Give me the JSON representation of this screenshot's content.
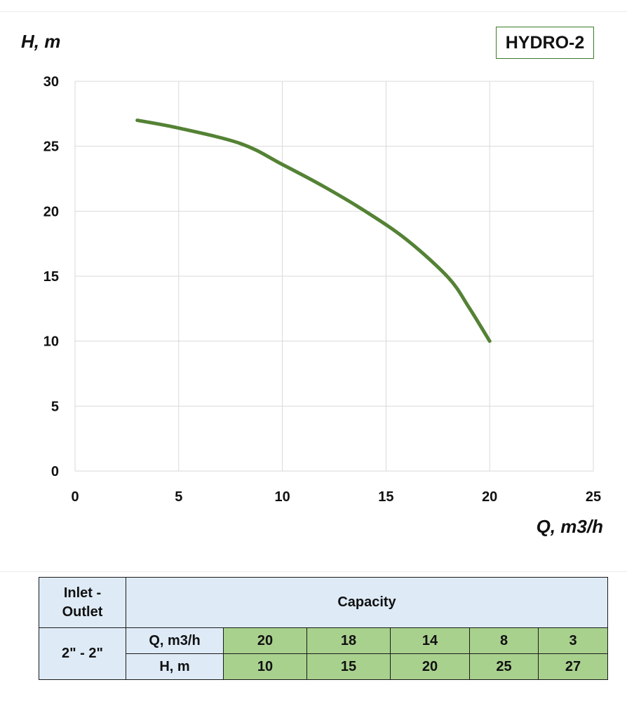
{
  "chart_data": {
    "type": "line",
    "title": "HYDRO-2",
    "xlabel": "Q, m3/h",
    "ylabel": "H, m",
    "xlim": [
      0,
      25
    ],
    "ylim": [
      0,
      30
    ],
    "x_ticks": [
      "0",
      "5",
      "10",
      "15",
      "20",
      "25"
    ],
    "y_ticks": [
      "0",
      "5",
      "10",
      "15",
      "20",
      "25",
      "30"
    ],
    "grid": true,
    "legend": "none",
    "line_color": "#548235",
    "x": [
      3,
      5,
      8,
      10,
      12,
      14,
      16,
      18,
      19,
      20
    ],
    "y": [
      27,
      26.4,
      25.2,
      23.6,
      21.9,
      20,
      17.8,
      14.9,
      12.6,
      10
    ]
  },
  "table": {
    "header_left": "Inlet -\nOutlet",
    "header_main": "Capacity",
    "connection": "2\" - 2\"",
    "rows": [
      {
        "label": "Q, m3/h",
        "values": [
          "20",
          "18",
          "14",
          "8",
          "3"
        ]
      },
      {
        "label": "H, m",
        "values": [
          "10",
          "15",
          "20",
          "25",
          "27"
        ]
      }
    ]
  }
}
